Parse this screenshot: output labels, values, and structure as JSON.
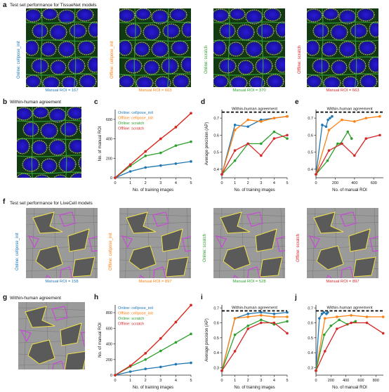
{
  "panels": {
    "a": {
      "letter": "a",
      "title": "Test set performance for TissueNet models"
    },
    "b": {
      "letter": "b",
      "title": "Within-human agreement"
    },
    "c": {
      "letter": "c"
    },
    "d": {
      "letter": "d"
    },
    "e": {
      "letter": "e"
    },
    "f": {
      "letter": "f",
      "title": "Test set performance for LiveCell models"
    },
    "g": {
      "letter": "g",
      "title": "Within-human agreement"
    },
    "h": {
      "letter": "h"
    },
    "i": {
      "letter": "i"
    },
    "j": {
      "letter": "j"
    }
  },
  "tissuenet_images": [
    {
      "label": "Online: cellpose_init",
      "caption": "Manual ROI = 167",
      "color": "#1f77b4"
    },
    {
      "label": "Offline: cellpose_init",
      "caption": "Manual ROI = 663",
      "color": "#ff7f0e"
    },
    {
      "label": "Online: scratch",
      "caption": "Manual ROI = 370",
      "color": "#2ca02c"
    },
    {
      "label": "Offline: scratch",
      "caption": "Manual ROI = 663",
      "color": "#d62728"
    }
  ],
  "livecell_images": [
    {
      "label": "Online: cellpose_init",
      "caption": "Manual ROI = 158",
      "color": "#1f77b4"
    },
    {
      "label": "Offline: cellpose_init",
      "caption": "Manual ROI = 897",
      "color": "#ff7f0e"
    },
    {
      "label": "Online: scratch",
      "caption": "Manual ROI = 528",
      "color": "#2ca02c"
    },
    {
      "label": "Offline: scratch",
      "caption": "Manual ROI = 897",
      "color": "#d62728"
    }
  ],
  "colors": {
    "online_init": "#1f77b4",
    "offline_init": "#ff7f0e",
    "online_scratch": "#2ca02c",
    "offline_scratch": "#d62728"
  },
  "chart_data": [
    {
      "id": "c",
      "type": "line",
      "xlabel": "No. of training images",
      "ylabel": "No. of manual ROI",
      "xlim": [
        0,
        5
      ],
      "ylim": [
        0,
        700
      ],
      "xticks": [
        0,
        1,
        2,
        3,
        4,
        5
      ],
      "yticks": [
        0,
        200,
        400,
        600
      ],
      "legend": "top-left",
      "series": [
        {
          "name": "Online: cellpose_init",
          "color": "#1f77b4",
          "x": [
            0,
            1,
            2,
            3,
            4,
            5
          ],
          "y": [
            0,
            65,
            105,
            125,
            145,
            167
          ]
        },
        {
          "name": "Offline: cellpose_init",
          "color": "#ff7f0e",
          "x": [
            0,
            1,
            2,
            3,
            4,
            5
          ],
          "y": [
            0,
            135,
            270,
            400,
            520,
            663
          ]
        },
        {
          "name": "Online: scratch",
          "color": "#2ca02c",
          "x": [
            0,
            1,
            2,
            3,
            4,
            5
          ],
          "y": [
            0,
            120,
            225,
            255,
            330,
            370
          ]
        },
        {
          "name": "Offline: scratch",
          "color": "#d62728",
          "x": [
            0,
            1,
            2,
            3,
            4,
            5
          ],
          "y": [
            0,
            135,
            270,
            400,
            520,
            663
          ]
        }
      ]
    },
    {
      "id": "d",
      "type": "line",
      "xlabel": "No. of training images",
      "ylabel": "Average precision (AP)",
      "xlim": [
        0,
        5
      ],
      "ylim": [
        0.35,
        0.75
      ],
      "xticks": [
        0,
        1,
        2,
        3,
        4,
        5
      ],
      "yticks": [
        0.4,
        0.5,
        0.6,
        0.7
      ],
      "reference_line": {
        "label": "Within-human agreement",
        "y": 0.735
      },
      "series": [
        {
          "name": "Online: cellpose_init",
          "color": "#1f77b4",
          "x": [
            0,
            1,
            2,
            3,
            4,
            5
          ],
          "y": [
            0.37,
            0.66,
            0.65,
            0.69,
            0.7,
            0.71
          ]
        },
        {
          "name": "Offline: cellpose_init",
          "color": "#ff7f0e",
          "x": [
            0,
            1,
            2,
            3,
            4,
            5
          ],
          "y": [
            0.37,
            0.63,
            0.69,
            0.68,
            0.7,
            0.71
          ]
        },
        {
          "name": "Online: scratch",
          "color": "#2ca02c",
          "x": [
            0,
            1,
            2,
            3,
            4,
            5
          ],
          "y": [
            0.37,
            0.45,
            0.55,
            0.55,
            0.62,
            0.58
          ]
        },
        {
          "name": "Offline: scratch",
          "color": "#d62728",
          "x": [
            0,
            1,
            2,
            3,
            4,
            5
          ],
          "y": [
            0.37,
            0.51,
            0.55,
            0.48,
            0.58,
            0.6
          ]
        }
      ]
    },
    {
      "id": "e",
      "type": "line",
      "xlabel": "No. of manual ROI",
      "ylabel": "",
      "xlim": [
        0,
        700
      ],
      "ylim": [
        0.35,
        0.75
      ],
      "xticks": [
        0,
        200,
        400,
        600
      ],
      "yticks": [
        0.4,
        0.5,
        0.6,
        0.7
      ],
      "reference_line": {
        "label": "Within-human agreement",
        "y": 0.735
      },
      "series": [
        {
          "name": "Online: cellpose_init",
          "color": "#1f77b4",
          "x": [
            0,
            65,
            105,
            125,
            145,
            167
          ],
          "y": [
            0.37,
            0.66,
            0.65,
            0.69,
            0.7,
            0.71
          ]
        },
        {
          "name": "Offline: cellpose_init",
          "color": "#ff7f0e",
          "x": [
            0,
            135,
            270,
            400,
            520,
            663
          ],
          "y": [
            0.37,
            0.63,
            0.69,
            0.68,
            0.7,
            0.71
          ]
        },
        {
          "name": "Online: scratch",
          "color": "#2ca02c",
          "x": [
            0,
            120,
            225,
            255,
            330,
            370
          ],
          "y": [
            0.37,
            0.45,
            0.55,
            0.55,
            0.62,
            0.58
          ]
        },
        {
          "name": "Offline: scratch",
          "color": "#d62728",
          "x": [
            0,
            135,
            270,
            400,
            520,
            663
          ],
          "y": [
            0.37,
            0.51,
            0.55,
            0.48,
            0.58,
            0.6
          ]
        }
      ]
    },
    {
      "id": "h",
      "type": "line",
      "xlabel": "No. of training images",
      "ylabel": "No. of manual ROI",
      "xlim": [
        0,
        5
      ],
      "ylim": [
        0,
        900
      ],
      "xticks": [
        0,
        1,
        2,
        3,
        4,
        5
      ],
      "yticks": [
        0,
        200,
        400,
        600,
        800
      ],
      "legend": "top-left",
      "series": [
        {
          "name": "Online: cellpose_init",
          "color": "#1f77b4",
          "x": [
            0,
            1,
            2,
            3,
            4,
            5
          ],
          "y": [
            0,
            45,
            80,
            105,
            140,
            158
          ]
        },
        {
          "name": "Offline: cellpose_init",
          "color": "#ff7f0e",
          "x": [
            0,
            1,
            2,
            3,
            4,
            5
          ],
          "y": [
            0,
            120,
            280,
            470,
            680,
            897
          ]
        },
        {
          "name": "Online: scratch",
          "color": "#2ca02c",
          "x": [
            0,
            1,
            2,
            3,
            4,
            5
          ],
          "y": [
            0,
            110,
            200,
            310,
            420,
            528
          ]
        },
        {
          "name": "Offline: scratch",
          "color": "#d62728",
          "x": [
            0,
            1,
            2,
            3,
            4,
            5
          ],
          "y": [
            0,
            120,
            280,
            470,
            680,
            897
          ]
        }
      ]
    },
    {
      "id": "i",
      "type": "line",
      "xlabel": "No. of training images",
      "ylabel": "Average precision (AP)",
      "xlim": [
        0,
        5
      ],
      "ylim": [
        0.25,
        0.72
      ],
      "xticks": [
        0,
        1,
        2,
        3,
        4,
        5
      ],
      "yticks": [
        0.3,
        0.4,
        0.5,
        0.6,
        0.7
      ],
      "reference_line": {
        "label": "Within-human agreement",
        "y": 0.68
      },
      "series": [
        {
          "name": "Online: cellpose_init",
          "color": "#1f77b4",
          "x": [
            0,
            1,
            2,
            3,
            4,
            5
          ],
          "y": [
            0.28,
            0.63,
            0.66,
            0.67,
            0.66,
            0.67
          ]
        },
        {
          "name": "Offline: cellpose_init",
          "color": "#ff7f0e",
          "x": [
            0,
            1,
            2,
            3,
            4,
            5
          ],
          "y": [
            0.28,
            0.63,
            0.64,
            0.65,
            0.64,
            0.64
          ]
        },
        {
          "name": "Online: scratch",
          "color": "#2ca02c",
          "x": [
            0,
            1,
            2,
            3,
            4,
            5
          ],
          "y": [
            0.28,
            0.52,
            0.58,
            0.62,
            0.59,
            0.61
          ]
        },
        {
          "name": "Offline: scratch",
          "color": "#d62728",
          "x": [
            0,
            1,
            2,
            3,
            4,
            5
          ],
          "y": [
            0.28,
            0.41,
            0.56,
            0.6,
            0.6,
            0.53
          ]
        }
      ]
    },
    {
      "id": "j",
      "type": "line",
      "xlabel": "No. of manual ROI",
      "ylabel": "",
      "xlim": [
        0,
        900
      ],
      "ylim": [
        0.25,
        0.72
      ],
      "xticks": [
        0,
        200,
        400,
        600,
        800
      ],
      "yticks": [
        0.3,
        0.4,
        0.5,
        0.6,
        0.7
      ],
      "reference_line": {
        "label": "Within-human agreement",
        "y": 0.68
      },
      "series": [
        {
          "name": "Online: cellpose_init",
          "color": "#1f77b4",
          "x": [
            0,
            45,
            80,
            105,
            140,
            158
          ],
          "y": [
            0.28,
            0.63,
            0.66,
            0.67,
            0.66,
            0.67
          ]
        },
        {
          "name": "Offline: cellpose_init",
          "color": "#ff7f0e",
          "x": [
            0,
            120,
            280,
            470,
            680,
            897
          ],
          "y": [
            0.28,
            0.63,
            0.64,
            0.65,
            0.64,
            0.64
          ]
        },
        {
          "name": "Online: scratch",
          "color": "#2ca02c",
          "x": [
            0,
            110,
            200,
            310,
            420,
            528
          ],
          "y": [
            0.28,
            0.52,
            0.58,
            0.62,
            0.59,
            0.61
          ]
        },
        {
          "name": "Offline: scratch",
          "color": "#d62728",
          "x": [
            0,
            120,
            280,
            470,
            680,
            897
          ],
          "y": [
            0.28,
            0.41,
            0.56,
            0.6,
            0.6,
            0.53
          ]
        }
      ]
    }
  ]
}
